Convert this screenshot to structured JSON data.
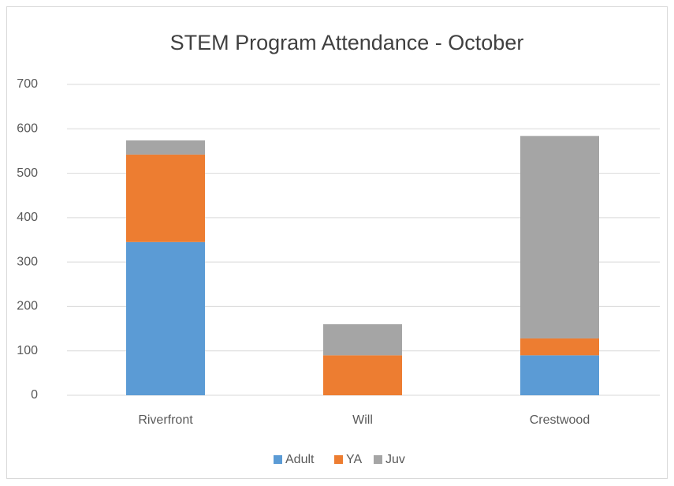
{
  "chart_data": {
    "type": "stacked_bar",
    "title": "STEM Program Attendance - October",
    "categories": [
      "Riverfront",
      "Will",
      "Crestwood"
    ],
    "series": [
      {
        "name": "Adult",
        "color": "#5b9bd5",
        "values": [
          345,
          0,
          90
        ]
      },
      {
        "name": "YA",
        "color": "#ed7d31",
        "values": [
          197,
          90,
          38
        ]
      },
      {
        "name": "Juv",
        "color": "#a5a5a5",
        "values": [
          32,
          70,
          456
        ]
      }
    ],
    "ylim": [
      0,
      700
    ],
    "yticks": [
      0,
      100,
      200,
      300,
      400,
      500,
      600,
      700
    ],
    "grid": true,
    "legend": "bottom"
  }
}
